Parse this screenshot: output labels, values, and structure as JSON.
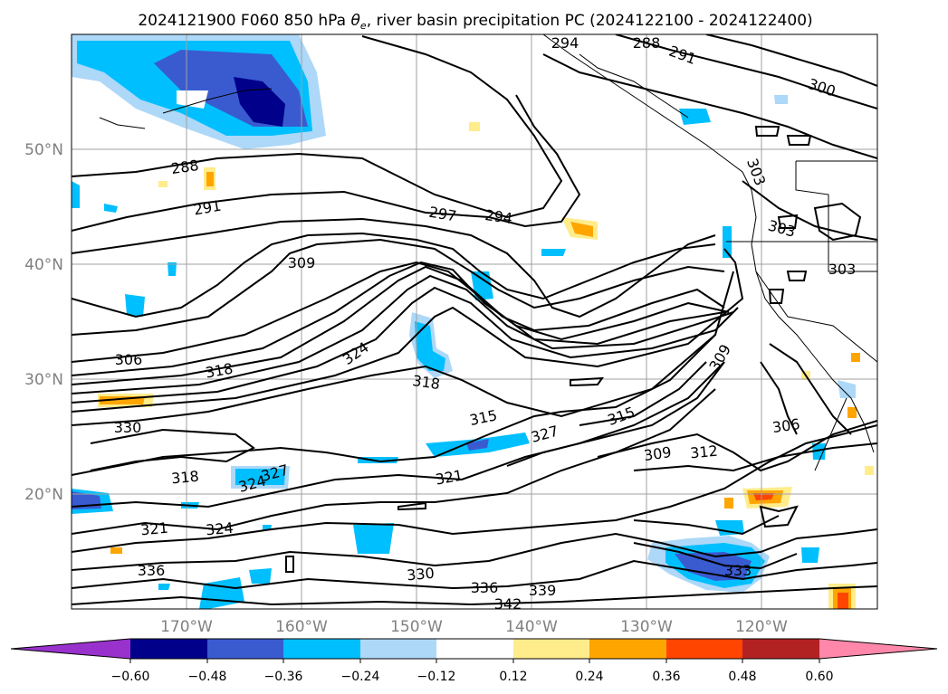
{
  "title_main": "2024121900 F060 850 hPa ",
  "title_theta": "θ",
  "title_sub": "e",
  "title_rest": ", river basin precipitation PC (2024122100 - 2024122400)",
  "lat_labels": [
    "50°N",
    "40°N",
    "30°N",
    "20°N"
  ],
  "lon_labels": [
    "170°W",
    "160°W",
    "150°W",
    "140°W",
    "130°W",
    "120°W"
  ],
  "colorbar": {
    "ticks": [
      "−0.60",
      "−0.48",
      "−0.36",
      "−0.24",
      "−0.12",
      "0.12",
      "0.24",
      "0.36",
      "0.48",
      "0.60"
    ],
    "colors": [
      "#9932cc",
      "#00008b",
      "#3a5bd0",
      "#00bfff",
      "#add8f8",
      "#ffffff",
      "#ffec8b",
      "#ffa500",
      "#ff4500",
      "#b22222",
      "#ff88aa"
    ]
  },
  "contour_labels": [
    {
      "text": "288"
    },
    {
      "text": "291"
    },
    {
      "text": "294"
    },
    {
      "text": "297"
    },
    {
      "text": "300"
    },
    {
      "text": "303"
    },
    {
      "text": "303"
    },
    {
      "text": "306"
    },
    {
      "text": "309"
    },
    {
      "text": "309"
    },
    {
      "text": "309"
    },
    {
      "text": "312"
    },
    {
      "text": "315"
    },
    {
      "text": "315"
    },
    {
      "text": "318"
    },
    {
      "text": "318"
    },
    {
      "text": "318"
    },
    {
      "text": "321"
    },
    {
      "text": "321"
    },
    {
      "text": "324"
    },
    {
      "text": "324"
    },
    {
      "text": "327"
    },
    {
      "text": "327"
    },
    {
      "text": "330"
    },
    {
      "text": "330"
    },
    {
      "text": "336"
    },
    {
      "text": "336"
    },
    {
      "text": "339"
    },
    {
      "text": "342"
    },
    {
      "text": "306"
    },
    {
      "text": "294"
    },
    {
      "text": "288"
    },
    {
      "text": "291"
    },
    {
      "text": "333"
    },
    {
      "text": "324"
    },
    {
      "text": "303"
    }
  ]
}
